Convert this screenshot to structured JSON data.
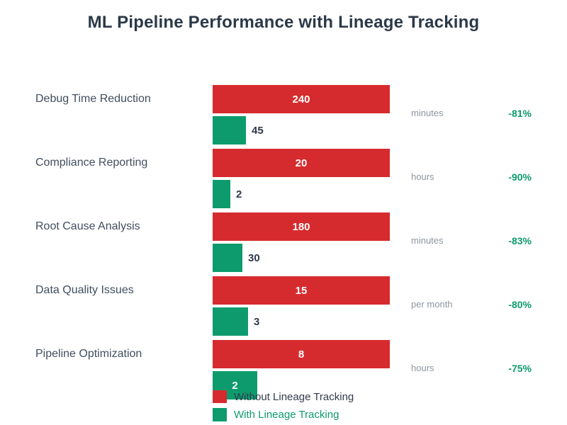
{
  "title": "ML Pipeline Performance with Lineage Tracking",
  "colors": {
    "without_lineage_bar": "#d62b2e",
    "with_lineage_bar": "#0d9b6d",
    "title_text": "#2b3948",
    "category_text": "#414e5f",
    "unit_text": "#8d95a0",
    "value_text_dark": "#2f3b4c",
    "value_text_on_bar": "#ffffff",
    "reduction_text": "#0d9b6d"
  },
  "chart_data": {
    "type": "bar",
    "orientation": "horizontal",
    "title": "ML Pipeline Performance with Lineage Tracking",
    "categories": [
      "Debug Time Reduction",
      "Compliance Reporting",
      "Root Cause Analysis",
      "Data Quality Issues",
      "Pipeline Optimization"
    ],
    "series": [
      {
        "name": "Without Lineage Tracking",
        "color": "#d62b2e",
        "values": [
          240,
          20,
          180,
          15,
          8
        ]
      },
      {
        "name": "With Lineage Tracking",
        "color": "#0d9b6d",
        "values": [
          45,
          2,
          30,
          3,
          2
        ]
      }
    ],
    "units": [
      "minutes",
      "hours",
      "minutes",
      "per month",
      "hours"
    ],
    "reductions": [
      "-81%",
      "-90%",
      "-83%",
      "-80%",
      "-75%"
    ],
    "grid": false,
    "axes": "none",
    "normalization": "per-row: larger bar spans full track width",
    "legend_position": "bottom-left under last row"
  },
  "legend": {
    "items": [
      {
        "label": "Without Lineage Tracking",
        "color": "#d62b2e"
      },
      {
        "label": "With Lineage Tracking",
        "color": "#0d9b6d"
      }
    ]
  }
}
